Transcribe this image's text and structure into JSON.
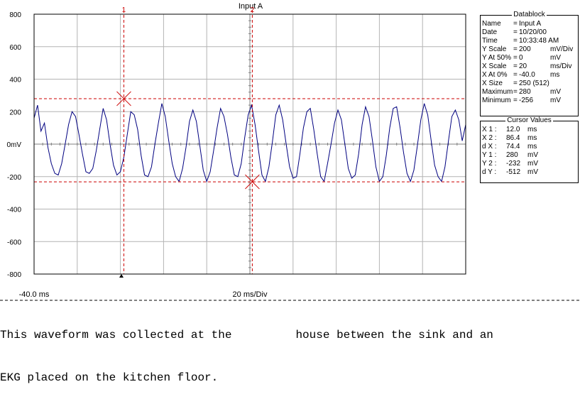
{
  "chart_data": {
    "type": "line",
    "title": "Input A",
    "x_axis": {
      "start_label": "-40.0 ms",
      "scale_label": "20 ms/Div",
      "range_ms": [
        -40,
        210
      ],
      "divisions": 10
    },
    "y_axis": {
      "tick_labels": [
        "800",
        "600",
        "400",
        "200",
        "0mV",
        "-200",
        "-400",
        "-600",
        "-800"
      ],
      "ticks": [
        800,
        600,
        400,
        200,
        0,
        -200,
        -400,
        -600,
        -800
      ],
      "range_mv": [
        -800,
        800
      ]
    },
    "grid": true,
    "series": [
      {
        "color": "#000080",
        "x": [
          -40,
          -38,
          -36,
          -34,
          -32,
          -30,
          -28,
          -26,
          -24,
          -22,
          -20,
          -18,
          -16,
          -14,
          -12,
          -10,
          -8,
          -6,
          -4,
          -2,
          0,
          2,
          4,
          6,
          8,
          10,
          12,
          14,
          16,
          18,
          20,
          22,
          24,
          26,
          28,
          30,
          32,
          34,
          36,
          38,
          40,
          42,
          44,
          46,
          48,
          50,
          52,
          54,
          56,
          58,
          60,
          62,
          64,
          66,
          68,
          70,
          72,
          74,
          76,
          78,
          80,
          82,
          84,
          86,
          88,
          90,
          92,
          94,
          96,
          98,
          100,
          102,
          104,
          106,
          108,
          110,
          112,
          114,
          116,
          118,
          120,
          122,
          124,
          126,
          128,
          130,
          132,
          134,
          136,
          138,
          140,
          142,
          144,
          146,
          148,
          150,
          152,
          154,
          156,
          158,
          160,
          162,
          164,
          166,
          168,
          170,
          172,
          174,
          176,
          178,
          180,
          182,
          184,
          186,
          188,
          190,
          192,
          194,
          196,
          198,
          200,
          202,
          204,
          206,
          208,
          210
        ],
        "y": [
          160,
          240,
          80,
          130,
          -20,
          -120,
          -180,
          -190,
          -120,
          0,
          120,
          200,
          170,
          60,
          -60,
          -170,
          -180,
          -150,
          -40,
          90,
          220,
          150,
          0,
          -130,
          -190,
          -170,
          -80,
          60,
          200,
          180,
          90,
          -70,
          -190,
          -200,
          -140,
          0,
          130,
          250,
          170,
          20,
          -120,
          -200,
          -230,
          -150,
          -20,
          140,
          210,
          140,
          -10,
          -160,
          -230,
          -170,
          -40,
          100,
          220,
          170,
          60,
          -80,
          -190,
          -200,
          -120,
          40,
          180,
          240,
          120,
          -40,
          -190,
          -230,
          -140,
          10,
          180,
          240,
          150,
          0,
          -140,
          -210,
          -200,
          -60,
          100,
          200,
          220,
          90,
          -60,
          -200,
          -230,
          -120,
          0,
          130,
          210,
          150,
          0,
          -150,
          -210,
          -190,
          -60,
          120,
          230,
          170,
          20,
          -140,
          -230,
          -200,
          -70,
          100,
          220,
          230,
          100,
          -50,
          -180,
          -230,
          -160,
          -10,
          150,
          250,
          180,
          20,
          -130,
          -200,
          -230,
          -140,
          20,
          170,
          210,
          150,
          20,
          120
        ]
      }
    ],
    "cursors": [
      {
        "label": "1",
        "x_ms": 12.0,
        "y_mv": 280
      },
      {
        "label": "2",
        "x_ms": 86.4,
        "y_mv": -232
      }
    ],
    "bottom_marker_x_ms": 0
  },
  "datablock": {
    "title": "Datablock",
    "rows": [
      {
        "label": "Name",
        "eq": "=",
        "value": "Input A",
        "unit": ""
      },
      {
        "label": "Date",
        "eq": "=",
        "value": "10/20/00",
        "unit": ""
      },
      {
        "label": "Time",
        "eq": "=",
        "value": "10:33:48 AM",
        "unit": ""
      },
      {
        "label": "Y Scale",
        "eq": "=",
        "value": "200",
        "unit": "mV/Div"
      },
      {
        "label": "Y At 50%",
        "eq": "=",
        "value": "0",
        "unit": "mV"
      },
      {
        "label": "X Scale",
        "eq": "=",
        "value": "20",
        "unit": "ms/Div"
      },
      {
        "label": "X At 0%",
        "eq": "=",
        "value": "-40.0",
        "unit": "ms"
      },
      {
        "label": "X Size",
        "eq": "=",
        "value": "250 (512)",
        "unit": ""
      },
      {
        "label": "Maximum",
        "eq": "=",
        "value": "280",
        "unit": "mV"
      },
      {
        "label": "Minimum",
        "eq": "=",
        "value": "-256",
        "unit": "mV"
      }
    ]
  },
  "cursor_values": {
    "title": "Cursor Values",
    "rows": [
      {
        "label": "X 1 :",
        "value": "12.0",
        "unit": "ms"
      },
      {
        "label": "X 2 :",
        "value": "86.4",
        "unit": "ms"
      },
      {
        "label": "d X :",
        "value": "74.4",
        "unit": "ms"
      },
      {
        "label": "Y 1 :",
        "value": "280",
        "unit": "mV"
      },
      {
        "label": "Y 2 :",
        "value": "-232",
        "unit": "mV"
      },
      {
        "label": "d Y :",
        "value": "-512",
        "unit": "mV"
      }
    ]
  },
  "caption": {
    "line1_before": "This waveform was collected at the",
    "line1_after": "house between the sink and an",
    "line2": "EKG placed on the kitchen floor."
  },
  "colors": {
    "trace": "#000080",
    "cursor": "#cc0000",
    "grid": "#b4b4b4",
    "axis": "#000000"
  }
}
